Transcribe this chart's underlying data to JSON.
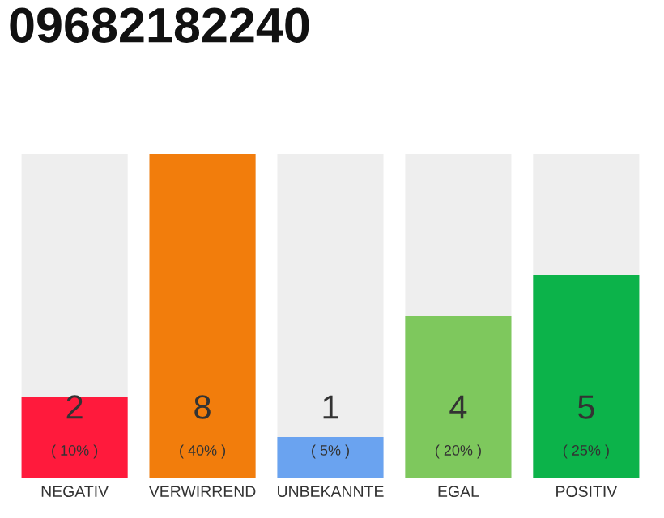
{
  "chart_data": {
    "type": "bar",
    "title": "09682182240",
    "categories": [
      "NEGATIV",
      "VERWIRREND",
      "UNBEKANNTE",
      "EGAL",
      "POSITIV"
    ],
    "values": [
      2,
      8,
      1,
      4,
      5
    ],
    "colors": [
      "#ff1a3c",
      "#f27d0c",
      "#6aa3f0",
      "#7ec85d",
      "#0cb34a"
    ],
    "ylim": [
      0,
      8
    ],
    "data_labels": true,
    "annotations": [
      "( 10% )",
      "( 40% )",
      "( 5% )",
      "( 20% )",
      "( 25% )"
    ],
    "grid": false,
    "legend": false
  }
}
